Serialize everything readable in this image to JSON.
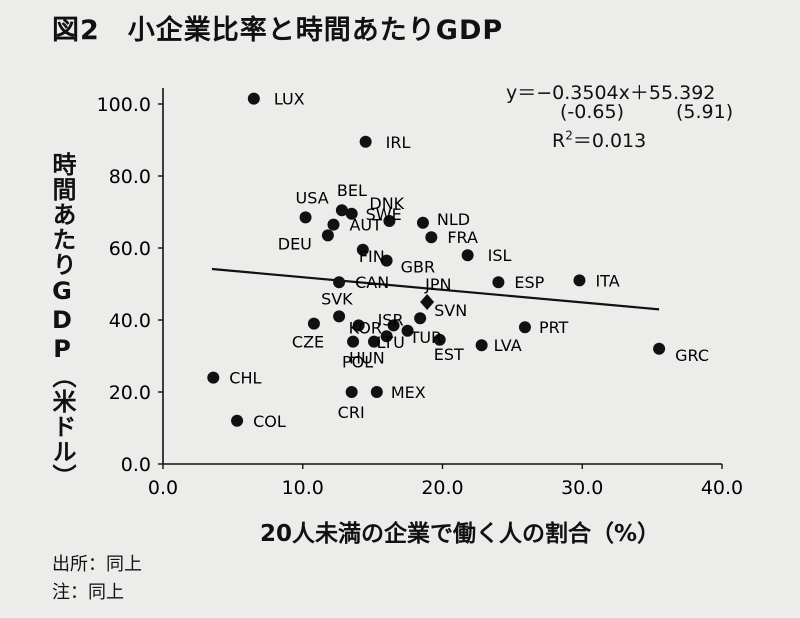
{
  "figure": {
    "title": "図2　小企業比率と時間あたりGDP",
    "source_note": "出所：同上",
    "note": "注：同上"
  },
  "regression": {
    "equation": "y＝−0.3504x＋55.392",
    "t_slope": "(-0.65)",
    "t_intercept": "(5.91)",
    "r2_label": "R",
    "r2_value": "＝0.013",
    "slope": -0.3504,
    "intercept": 55.392,
    "x_range": [
      3.5,
      35.5
    ]
  },
  "chart_data": {
    "type": "scatter",
    "title": "小企業比率と時間あたりGDP",
    "xlabel": "20人未満の企業で働く人の割合（%）",
    "ylabel": "時間あたりGDP（米ドル）",
    "xlim": [
      0,
      40
    ],
    "ylim": [
      0,
      100
    ],
    "xticks": [
      "0.0",
      "10.0",
      "20.0",
      "30.0",
      "40.0"
    ],
    "yticks": [
      "0.0",
      "20.0",
      "40.0",
      "60.0",
      "80.0",
      "100.0"
    ],
    "grid": false,
    "points": [
      {
        "label": "LUX",
        "x": 6.5,
        "y": 101.5
      },
      {
        "label": "IRL",
        "x": 14.5,
        "y": 89.5
      },
      {
        "label": "USA",
        "x": 10.2,
        "y": 68.5
      },
      {
        "label": "BEL",
        "x": 12.8,
        "y": 70.5
      },
      {
        "label": "DNK",
        "x": 16.2,
        "y": 67.5
      },
      {
        "label": "NLD",
        "x": 18.6,
        "y": 67.0
      },
      {
        "label": "AUT",
        "x": 12.2,
        "y": 66.5
      },
      {
        "label": "SWE",
        "x": 13.5,
        "y": 69.5
      },
      {
        "label": "FRA",
        "x": 19.2,
        "y": 63.0
      },
      {
        "label": "DEU",
        "x": 11.8,
        "y": 63.5
      },
      {
        "label": "FIN",
        "x": 14.3,
        "y": 59.5
      },
      {
        "label": "ISL",
        "x": 21.8,
        "y": 58.0
      },
      {
        "label": "GBR",
        "x": 16.0,
        "y": 56.5
      },
      {
        "label": "CAN",
        "x": 12.6,
        "y": 50.5
      },
      {
        "label": "ESP",
        "x": 24.0,
        "y": 50.5
      },
      {
        "label": "ITA",
        "x": 29.8,
        "y": 51.0
      },
      {
        "label": "JPN",
        "x": 18.9,
        "y": 45.0
      },
      {
        "label": "SVK",
        "x": 12.6,
        "y": 41.0
      },
      {
        "label": "SVN",
        "x": 18.4,
        "y": 40.5
      },
      {
        "label": "CZE",
        "x": 10.8,
        "y": 39.0
      },
      {
        "label": "ISR",
        "x": 16.5,
        "y": 38.5
      },
      {
        "label": "KOR",
        "x": 14.0,
        "y": 38.5
      },
      {
        "label": "TUR",
        "x": 17.5,
        "y": 37.0
      },
      {
        "label": "PRT",
        "x": 25.9,
        "y": 38.0
      },
      {
        "label": "LTU",
        "x": 16.0,
        "y": 35.5
      },
      {
        "label": "HUN",
        "x": 13.6,
        "y": 34.0
      },
      {
        "label": "POL",
        "x": 15.1,
        "y": 34.0
      },
      {
        "label": "EST",
        "x": 19.8,
        "y": 34.5
      },
      {
        "label": "LVA",
        "x": 22.8,
        "y": 33.0
      },
      {
        "label": "GRC",
        "x": 35.5,
        "y": 32.0
      },
      {
        "label": "CHL",
        "x": 3.6,
        "y": 24.0
      },
      {
        "label": "MEX",
        "x": 15.3,
        "y": 20.0
      },
      {
        "label": "CRI",
        "x": 13.5,
        "y": 20.0
      },
      {
        "label": "COL",
        "x": 5.3,
        "y": 12.0
      }
    ],
    "highlight": {
      "label": "JPN",
      "x": 18.9,
      "y": 45.0
    }
  }
}
